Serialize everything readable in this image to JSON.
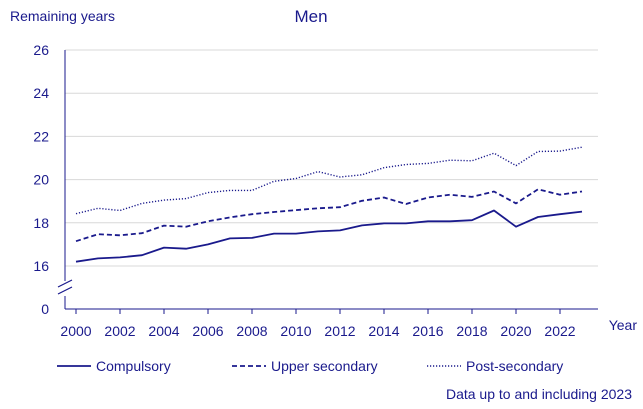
{
  "chart_data": {
    "type": "line",
    "title": "Men",
    "ylabel": "Remaining years",
    "xlabel": "Year",
    "note": "Data up to and including 2023",
    "ylim": [
      0,
      26
    ],
    "axis_break": [
      0,
      16
    ],
    "yticks": [
      0,
      16,
      18,
      20,
      22,
      24,
      26
    ],
    "xticks": [
      2000,
      2002,
      2004,
      2006,
      2008,
      2010,
      2012,
      2014,
      2016,
      2018,
      2020,
      2022
    ],
    "grid": true,
    "legend_position": "bottom",
    "color": "#1a1a8c",
    "x": [
      2000,
      2001,
      2002,
      2003,
      2004,
      2005,
      2006,
      2007,
      2008,
      2009,
      2010,
      2011,
      2012,
      2013,
      2014,
      2015,
      2016,
      2017,
      2018,
      2019,
      2020,
      2021,
      2022,
      2023
    ],
    "series": [
      {
        "name": "Compulsory",
        "style": "solid",
        "values": [
          16.2,
          16.35,
          16.4,
          16.5,
          16.85,
          16.8,
          17.0,
          17.28,
          17.3,
          17.5,
          17.5,
          17.6,
          17.65,
          17.88,
          17.97,
          17.97,
          18.07,
          18.07,
          18.12,
          18.57,
          17.82,
          18.27,
          18.4,
          18.52
        ]
      },
      {
        "name": "Upper secondary",
        "style": "dashed",
        "values": [
          17.15,
          17.47,
          17.42,
          17.52,
          17.87,
          17.82,
          18.07,
          18.25,
          18.4,
          18.5,
          18.59,
          18.67,
          18.72,
          19.02,
          19.17,
          18.87,
          19.17,
          19.3,
          19.2,
          19.45,
          18.9,
          19.55,
          19.3,
          19.45
        ]
      },
      {
        "name": "Post-secondary",
        "style": "dotted",
        "values": [
          18.42,
          18.67,
          18.57,
          18.9,
          19.05,
          19.12,
          19.4,
          19.5,
          19.5,
          19.92,
          20.05,
          20.37,
          20.12,
          20.22,
          20.55,
          20.7,
          20.75,
          20.9,
          20.87,
          21.22,
          20.65,
          21.3,
          21.32,
          21.5
        ]
      }
    ]
  }
}
